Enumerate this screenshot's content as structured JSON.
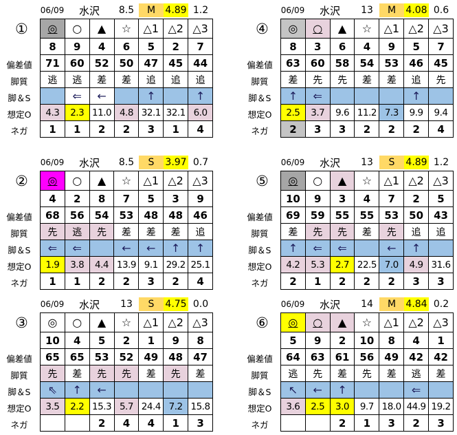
{
  "labels": [
    "偏差値",
    "脚質",
    "脚＆S",
    "想定O",
    "ネガ"
  ],
  "colors": {
    "b": "#9dc3e6",
    "p": "#e8d2dd",
    "y": "#ffff00",
    "g": "#a6a6a6",
    "lg": "#c4c4c4",
    "m": "#ff00ff",
    "o": "#ffd966"
  },
  "symbols": [
    "◎",
    "○",
    "▲",
    "☆",
    "△1",
    "△2",
    "△3"
  ],
  "blocks": [
    {
      "num": "①",
      "date": "06/09",
      "venue": "水沢",
      "field": "8.5",
      "grade": "M",
      "score": "4.89",
      "diff": "1.2",
      "marks": [
        {
          "bg": "g",
          "u": true
        },
        {
          "bg": ""
        },
        {
          "bg": ""
        },
        {
          "bg": ""
        },
        {
          "bg": ""
        },
        {
          "bg": ""
        },
        {
          "bg": ""
        }
      ],
      "horse": [
        "8",
        "9",
        "4",
        "6",
        "5",
        "2",
        "7"
      ],
      "dev": [
        "71",
        "60",
        "52",
        "50",
        "47",
        "45",
        "44"
      ],
      "style": [
        {
          "t": "逃",
          "bg": ""
        },
        {
          "t": "逃",
          "bg": ""
        },
        {
          "t": "差",
          "bg": ""
        },
        {
          "t": "差",
          "bg": ""
        },
        {
          "t": "追",
          "bg": ""
        },
        {
          "t": "追",
          "bg": ""
        },
        {
          "t": "追",
          "bg": ""
        }
      ],
      "legs": [
        {
          "t": "",
          "bg": "b"
        },
        {
          "t": "⇐",
          "bg": ""
        },
        {
          "t": "←",
          "bg": ""
        },
        {
          "t": "",
          "bg": "b"
        },
        {
          "t": "↑",
          "bg": "b"
        },
        {
          "t": "",
          "bg": "b"
        },
        {
          "t": "↑",
          "bg": "b"
        }
      ],
      "odds": [
        {
          "t": "4.3",
          "bg": "p"
        },
        {
          "t": "2.3",
          "bg": "y"
        },
        {
          "t": "11.0",
          "bg": ""
        },
        {
          "t": "4.8",
          "bg": "p"
        },
        {
          "t": "32.1",
          "bg": ""
        },
        {
          "t": "32.1",
          "bg": ""
        },
        {
          "t": "6.0",
          "bg": "p"
        }
      ],
      "nega": [
        {
          "t": "1",
          "bg": ""
        },
        {
          "t": "1",
          "bg": ""
        },
        {
          "t": "2",
          "bg": ""
        },
        {
          "t": "2",
          "bg": ""
        },
        {
          "t": "3",
          "bg": ""
        },
        {
          "t": "1",
          "bg": ""
        },
        {
          "t": "4",
          "bg": ""
        }
      ]
    },
    {
      "num": "②",
      "date": "06/09",
      "venue": "水沢",
      "field": "8.5",
      "grade": "S",
      "score": "3.97",
      "diff": "0.7",
      "marks": [
        {
          "bg": "m",
          "u": true
        },
        {
          "bg": ""
        },
        {
          "bg": ""
        },
        {
          "bg": ""
        },
        {
          "bg": ""
        },
        {
          "bg": ""
        },
        {
          "bg": ""
        }
      ],
      "horse": [
        "4",
        "2",
        "8",
        "7",
        "5",
        "3",
        "9"
      ],
      "dev": [
        "68",
        "56",
        "54",
        "53",
        "48",
        "48",
        "46"
      ],
      "style": [
        {
          "t": "先",
          "bg": "p"
        },
        {
          "t": "逃",
          "bg": "p"
        },
        {
          "t": "先",
          "bg": "p"
        },
        {
          "t": "差",
          "bg": ""
        },
        {
          "t": "差",
          "bg": ""
        },
        {
          "t": "差",
          "bg": ""
        },
        {
          "t": "追",
          "bg": ""
        }
      ],
      "legs": [
        {
          "t": "⇐",
          "bg": "b"
        },
        {
          "t": "⇐",
          "bg": "b"
        },
        {
          "t": "",
          "bg": "b"
        },
        {
          "t": "←",
          "bg": "b"
        },
        {
          "t": "←",
          "bg": "b"
        },
        {
          "t": "↑",
          "bg": "b"
        },
        {
          "t": "↑",
          "bg": "b"
        }
      ],
      "odds": [
        {
          "t": "1.9",
          "bg": "y"
        },
        {
          "t": "3.8",
          "bg": "p"
        },
        {
          "t": "4.4",
          "bg": "p"
        },
        {
          "t": "13.9",
          "bg": ""
        },
        {
          "t": "9.1",
          "bg": ""
        },
        {
          "t": "29.2",
          "bg": ""
        },
        {
          "t": "25.1",
          "bg": ""
        }
      ],
      "nega": [
        {
          "t": "1",
          "bg": ""
        },
        {
          "t": "1",
          "bg": ""
        },
        {
          "t": "2",
          "bg": ""
        },
        {
          "t": "2",
          "bg": ""
        },
        {
          "t": "3",
          "bg": ""
        },
        {
          "t": "2",
          "bg": ""
        },
        {
          "t": "4",
          "bg": ""
        }
      ]
    },
    {
      "num": "③",
      "date": "06/09",
      "venue": "水沢",
      "field": "13",
      "grade": "S",
      "score": "4.75",
      "diff": "0.0",
      "marks": [
        {
          "bg": ""
        },
        {
          "bg": ""
        },
        {
          "bg": ""
        },
        {
          "bg": ""
        },
        {
          "bg": ""
        },
        {
          "bg": ""
        },
        {
          "bg": ""
        }
      ],
      "horse": [
        "10",
        "4",
        "5",
        "2",
        "1",
        "9",
        "8"
      ],
      "dev": [
        "65",
        "65",
        "53",
        "52",
        "49",
        "48",
        "47"
      ],
      "style": [
        {
          "t": "先",
          "bg": "p"
        },
        {
          "t": "差",
          "bg": ""
        },
        {
          "t": "先",
          "bg": "p"
        },
        {
          "t": "先",
          "bg": "p"
        },
        {
          "t": "差",
          "bg": ""
        },
        {
          "t": "先",
          "bg": "p"
        },
        {
          "t": "差",
          "bg": ""
        }
      ],
      "legs": [
        {
          "t": "⇖",
          "bg": "b"
        },
        {
          "t": "↑",
          "bg": "b"
        },
        {
          "t": "←",
          "bg": "b"
        },
        {
          "t": "",
          "bg": "b"
        },
        {
          "t": "",
          "bg": "b"
        },
        {
          "t": "",
          "bg": "b"
        },
        {
          "t": "",
          "bg": "b"
        }
      ],
      "odds": [
        {
          "t": "3.5",
          "bg": "p"
        },
        {
          "t": "2.2",
          "bg": "y"
        },
        {
          "t": "15.3",
          "bg": ""
        },
        {
          "t": "5.7",
          "bg": "p"
        },
        {
          "t": "24.4",
          "bg": ""
        },
        {
          "t": "7.2",
          "bg": "b"
        },
        {
          "t": "15.8",
          "bg": ""
        }
      ],
      "nega": [
        {
          "t": "",
          "bg": ""
        },
        {
          "t": "",
          "bg": ""
        },
        {
          "t": "2",
          "bg": ""
        },
        {
          "t": "4",
          "bg": ""
        },
        {
          "t": "4",
          "bg": ""
        },
        {
          "t": "1",
          "bg": ""
        },
        {
          "t": "3",
          "bg": ""
        }
      ]
    },
    {
      "num": "④",
      "date": "06/09",
      "venue": "水沢",
      "field": "13",
      "grade": "M",
      "score": "4.08",
      "diff": "0.6",
      "marks": [
        {
          "bg": "lg"
        },
        {
          "bg": "p",
          "u": true
        },
        {
          "bg": ""
        },
        {
          "bg": ""
        },
        {
          "bg": ""
        },
        {
          "bg": ""
        },
        {
          "bg": ""
        }
      ],
      "horse": [
        "8",
        "3",
        "6",
        "4",
        "9",
        "5",
        "7"
      ],
      "dev": [
        "63",
        "60",
        "58",
        "54",
        "53",
        "46",
        "45"
      ],
      "style": [
        {
          "t": "差",
          "bg": ""
        },
        {
          "t": "先",
          "bg": ""
        },
        {
          "t": "先",
          "bg": ""
        },
        {
          "t": "差",
          "bg": ""
        },
        {
          "t": "差",
          "bg": ""
        },
        {
          "t": "追",
          "bg": ""
        },
        {
          "t": "先",
          "bg": ""
        }
      ],
      "legs": [
        {
          "t": "↑",
          "bg": "b"
        },
        {
          "t": "⇐",
          "bg": "b"
        },
        {
          "t": "",
          "bg": "b"
        },
        {
          "t": "",
          "bg": "b"
        },
        {
          "t": "",
          "bg": "b"
        },
        {
          "t": "↑",
          "bg": "b"
        },
        {
          "t": "",
          "bg": "b"
        }
      ],
      "odds": [
        {
          "t": "2.5",
          "bg": "y"
        },
        {
          "t": "3.7",
          "bg": "p"
        },
        {
          "t": "9.6",
          "bg": ""
        },
        {
          "t": "11.2",
          "bg": ""
        },
        {
          "t": "7.3",
          "bg": "b"
        },
        {
          "t": "9.9",
          "bg": ""
        },
        {
          "t": "9.4",
          "bg": ""
        }
      ],
      "nega": [
        {
          "t": "2",
          "bg": "lg"
        },
        {
          "t": "3",
          "bg": ""
        },
        {
          "t": "3",
          "bg": ""
        },
        {
          "t": "2",
          "bg": ""
        },
        {
          "t": "2",
          "bg": ""
        },
        {
          "t": "2",
          "bg": ""
        },
        {
          "t": "4",
          "bg": ""
        }
      ]
    },
    {
      "num": "⑤",
      "date": "06/09",
      "venue": "水沢",
      "field": "13",
      "grade": "S",
      "score": "4.89",
      "diff": "1.2",
      "marks": [
        {
          "bg": "g",
          "u": true
        },
        {
          "bg": ""
        },
        {
          "bg": "p",
          "u": true
        },
        {
          "bg": ""
        },
        {
          "bg": ""
        },
        {
          "bg": ""
        },
        {
          "bg": ""
        }
      ],
      "horse": [
        "10",
        "9",
        "3",
        "4",
        "7",
        "2",
        "5"
      ],
      "dev": [
        "69",
        "59",
        "55",
        "55",
        "53",
        "50",
        "43"
      ],
      "style": [
        {
          "t": "差",
          "bg": ""
        },
        {
          "t": "先",
          "bg": "p"
        },
        {
          "t": "先",
          "bg": "p"
        },
        {
          "t": "差",
          "bg": ""
        },
        {
          "t": "先",
          "bg": "p"
        },
        {
          "t": "追",
          "bg": ""
        },
        {
          "t": "追",
          "bg": ""
        }
      ],
      "legs": [
        {
          "t": "↑",
          "bg": "b"
        },
        {
          "t": "⇐",
          "bg": "b"
        },
        {
          "t": "⇐",
          "bg": "b"
        },
        {
          "t": "",
          "bg": "b"
        },
        {
          "t": "←",
          "bg": "b"
        },
        {
          "t": "↑",
          "bg": "b"
        },
        {
          "t": "",
          "bg": "b"
        }
      ],
      "odds": [
        {
          "t": "4.2",
          "bg": "p"
        },
        {
          "t": "5.3",
          "bg": "p"
        },
        {
          "t": "2.7",
          "bg": "y"
        },
        {
          "t": "22.5",
          "bg": ""
        },
        {
          "t": "7.0",
          "bg": "b"
        },
        {
          "t": "4.9",
          "bg": "p"
        },
        {
          "t": "31.6",
          "bg": ""
        }
      ],
      "nega": [
        {
          "t": "2",
          "bg": ""
        },
        {
          "t": "1",
          "bg": ""
        },
        {
          "t": "2",
          "bg": ""
        },
        {
          "t": "2",
          "bg": ""
        },
        {
          "t": "2",
          "bg": ""
        },
        {
          "t": "3",
          "bg": ""
        },
        {
          "t": "3",
          "bg": ""
        }
      ]
    },
    {
      "num": "⑥",
      "date": "06/09",
      "venue": "水沢",
      "field": "14",
      "grade": "M",
      "score": "4.84",
      "diff": "0.2",
      "marks": [
        {
          "bg": "y",
          "u": true
        },
        {
          "bg": "p",
          "u": true
        },
        {
          "bg": "p",
          "u": true
        },
        {
          "bg": ""
        },
        {
          "bg": ""
        },
        {
          "bg": ""
        },
        {
          "bg": ""
        }
      ],
      "horse": [
        "5",
        "9",
        "2",
        "10",
        "8",
        "4",
        "1"
      ],
      "dev": [
        "64",
        "63",
        "61",
        "56",
        "49",
        "42",
        "42"
      ],
      "style": [
        {
          "t": "逃",
          "bg": ""
        },
        {
          "t": "先",
          "bg": ""
        },
        {
          "t": "差",
          "bg": ""
        },
        {
          "t": "先",
          "bg": ""
        },
        {
          "t": "差",
          "bg": ""
        },
        {
          "t": "逃",
          "bg": ""
        },
        {
          "t": "差",
          "bg": ""
        }
      ],
      "legs": [
        {
          "t": "↖",
          "bg": "b"
        },
        {
          "t": "←",
          "bg": "b"
        },
        {
          "t": "↑",
          "bg": "b"
        },
        {
          "t": "",
          "bg": "b"
        },
        {
          "t": "",
          "bg": "b"
        },
        {
          "t": "⇐",
          "bg": "b"
        },
        {
          "t": "",
          "bg": "b"
        }
      ],
      "odds": [
        {
          "t": "3.6",
          "bg": "p"
        },
        {
          "t": "2.5",
          "bg": "y"
        },
        {
          "t": "3.0",
          "bg": "y"
        },
        {
          "t": "9.7",
          "bg": ""
        },
        {
          "t": "18.0",
          "bg": ""
        },
        {
          "t": "44.9",
          "bg": ""
        },
        {
          "t": "19.2",
          "bg": ""
        }
      ],
      "nega": [
        {
          "t": "",
          "bg": ""
        },
        {
          "t": "",
          "bg": ""
        },
        {
          "t": "2",
          "bg": ""
        },
        {
          "t": "1",
          "bg": ""
        },
        {
          "t": "3",
          "bg": ""
        },
        {
          "t": "2",
          "bg": ""
        },
        {
          "t": "3",
          "bg": ""
        }
      ]
    }
  ]
}
